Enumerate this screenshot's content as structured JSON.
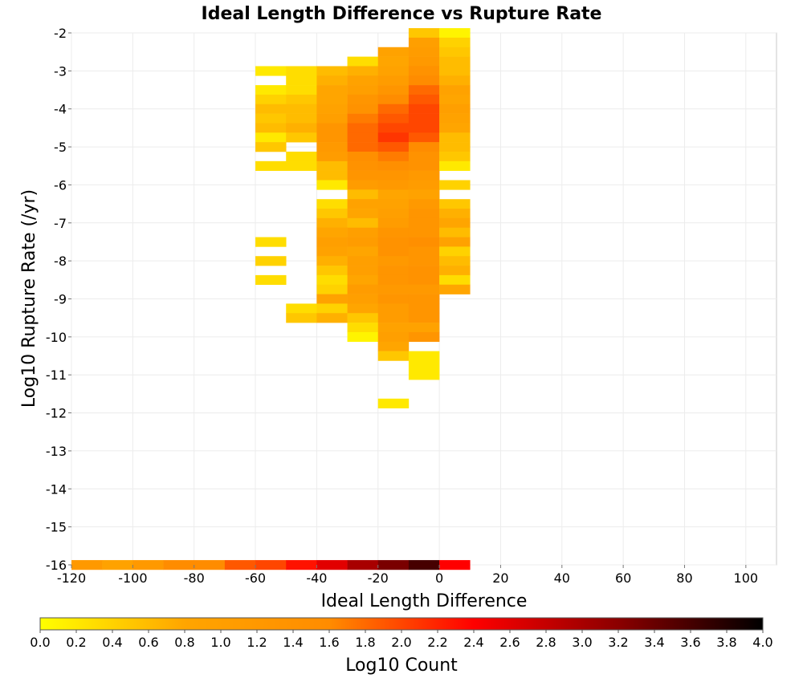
{
  "chart_data": {
    "type": "heatmap",
    "title": "Ideal Length Difference vs Rupture Rate",
    "xlabel": "Ideal Length Difference",
    "ylabel": "Log10 Rupture Rate (/yr)",
    "xlim": [
      -120,
      110
    ],
    "ylim": [
      -16,
      -2
    ],
    "x_ticks": [
      "-120",
      "-100",
      "-80",
      "-60",
      "-40",
      "-20",
      "0",
      "20",
      "40",
      "60",
      "80",
      "100"
    ],
    "y_ticks": [
      "-2",
      "-3",
      "-4",
      "-5",
      "-6",
      "-7",
      "-8",
      "-9",
      "-10",
      "-11",
      "-12",
      "-13",
      "-14",
      "-15",
      "-16"
    ],
    "x_bin_width": 10,
    "y_bin_height": 0.25,
    "colorbar": {
      "label": "Log10 Count",
      "min": 0.0,
      "max": 4.0,
      "ticks": [
        "0.0",
        "0.2",
        "0.4",
        "0.6",
        "0.8",
        "1.0",
        "1.2",
        "1.4",
        "1.6",
        "1.8",
        "2.0",
        "2.2",
        "2.4",
        "2.6",
        "2.8",
        "3.0",
        "3.2",
        "3.4",
        "3.6",
        "3.8",
        "4.0"
      ],
      "colors": [
        "#ffff00",
        "#ffa500",
        "#ff8c00",
        "#ff0000",
        "#8b0000",
        "#000000"
      ]
    },
    "cells": [
      [
        -10,
        -2,
        0.5
      ],
      [
        0,
        -2,
        0.1
      ],
      [
        -10,
        -2.25,
        1.0
      ],
      [
        0,
        -2.25,
        0.4
      ],
      [
        -20,
        -2.5,
        0.9
      ],
      [
        -10,
        -2.5,
        1.1
      ],
      [
        0,
        -2.5,
        0.5
      ],
      [
        -30,
        -2.75,
        0.3
      ],
      [
        -20,
        -2.75,
        0.8
      ],
      [
        -10,
        -2.75,
        1.2
      ],
      [
        0,
        -2.75,
        0.6
      ],
      [
        -60,
        -3,
        0.2
      ],
      [
        -50,
        -3,
        0.3
      ],
      [
        -40,
        -3,
        0.6
      ],
      [
        -30,
        -3,
        0.7
      ],
      [
        -20,
        -3,
        0.9
      ],
      [
        -10,
        -3,
        1.4
      ],
      [
        0,
        -3,
        0.6
      ],
      [
        -50,
        -3.25,
        0.3
      ],
      [
        -40,
        -3.25,
        0.7
      ],
      [
        -30,
        -3.25,
        0.9
      ],
      [
        -20,
        -3.25,
        1.1
      ],
      [
        -10,
        -3.25,
        1.6
      ],
      [
        0,
        -3.25,
        0.7
      ],
      [
        -60,
        -3.5,
        0.2
      ],
      [
        -50,
        -3.5,
        0.3
      ],
      [
        -40,
        -3.5,
        0.8
      ],
      [
        -30,
        -3.5,
        1.0
      ],
      [
        -20,
        -3.5,
        1.3
      ],
      [
        -10,
        -3.5,
        1.8
      ],
      [
        0,
        -3.5,
        0.9
      ],
      [
        -60,
        -3.75,
        0.4
      ],
      [
        -50,
        -3.75,
        0.5
      ],
      [
        -40,
        -3.75,
        0.8
      ],
      [
        -30,
        -3.75,
        1.3
      ],
      [
        -20,
        -3.75,
        1.6
      ],
      [
        -10,
        -3.75,
        1.9
      ],
      [
        0,
        -3.75,
        0.8
      ],
      [
        -60,
        -4,
        0.6
      ],
      [
        -50,
        -4,
        0.6
      ],
      [
        -40,
        -4,
        0.9
      ],
      [
        -30,
        -4,
        1.4
      ],
      [
        -20,
        -4,
        1.8
      ],
      [
        -10,
        -4,
        2.0
      ],
      [
        0,
        -4,
        1.0
      ],
      [
        -60,
        -4.25,
        0.5
      ],
      [
        -50,
        -4.25,
        0.6
      ],
      [
        -40,
        -4.25,
        1.0
      ],
      [
        -30,
        -4.25,
        1.7
      ],
      [
        -20,
        -4.25,
        1.9
      ],
      [
        -10,
        -4.25,
        2.0
      ],
      [
        0,
        -4.25,
        0.9
      ],
      [
        -60,
        -4.5,
        0.6
      ],
      [
        -50,
        -4.5,
        0.7
      ],
      [
        -40,
        -4.5,
        1.3
      ],
      [
        -30,
        -4.5,
        1.8
      ],
      [
        -20,
        -4.5,
        2.0
      ],
      [
        -10,
        -4.5,
        2.0
      ],
      [
        0,
        -4.5,
        0.8
      ],
      [
        -60,
        -4.75,
        0.2
      ],
      [
        -50,
        -4.75,
        0.5
      ],
      [
        -40,
        -4.75,
        1.3
      ],
      [
        -30,
        -4.75,
        1.8
      ],
      [
        -20,
        -4.75,
        2.1
      ],
      [
        -10,
        -4.75,
        1.9
      ],
      [
        0,
        -4.75,
        0.6
      ],
      [
        -60,
        -5,
        0.5
      ],
      [
        -40,
        -5,
        1.2
      ],
      [
        -30,
        -5,
        1.8
      ],
      [
        -20,
        -5,
        1.9
      ],
      [
        -10,
        -5,
        1.6
      ],
      [
        0,
        -5,
        0.6
      ],
      [
        -50,
        -5.25,
        0.3
      ],
      [
        -40,
        -5.25,
        1.1
      ],
      [
        -30,
        -5.25,
        1.5
      ],
      [
        -20,
        -5.25,
        1.7
      ],
      [
        -10,
        -5.25,
        1.4
      ],
      [
        0,
        -5.25,
        0.5
      ],
      [
        -60,
        -5.5,
        0.3
      ],
      [
        -50,
        -5.5,
        0.3
      ],
      [
        -40,
        -5.5,
        0.6
      ],
      [
        -30,
        -5.5,
        1.4
      ],
      [
        -20,
        -5.5,
        1.5
      ],
      [
        -10,
        -5.5,
        1.4
      ],
      [
        0,
        -5.5,
        0.2
      ],
      [
        -40,
        -5.75,
        0.6
      ],
      [
        -30,
        -5.75,
        1.3
      ],
      [
        -20,
        -5.75,
        1.3
      ],
      [
        -10,
        -5.75,
        1.2
      ],
      [
        -40,
        -6,
        0.2
      ],
      [
        -30,
        -6,
        1.1
      ],
      [
        -20,
        -6,
        1.2
      ],
      [
        -10,
        -6,
        1.1
      ],
      [
        0,
        -6,
        0.4
      ],
      [
        -30,
        -6.25,
        0.6
      ],
      [
        -20,
        -6.25,
        0.8
      ],
      [
        -10,
        -6.25,
        0.9
      ],
      [
        -40,
        -6.5,
        0.3
      ],
      [
        -30,
        -6.5,
        0.9
      ],
      [
        -20,
        -6.5,
        0.9
      ],
      [
        -10,
        -6.5,
        1.2
      ],
      [
        0,
        -6.5,
        0.5
      ],
      [
        -40,
        -6.75,
        0.5
      ],
      [
        -30,
        -6.75,
        0.8
      ],
      [
        -20,
        -6.75,
        1.0
      ],
      [
        -10,
        -6.75,
        1.3
      ],
      [
        0,
        -6.75,
        0.7
      ],
      [
        -40,
        -7,
        0.7
      ],
      [
        -30,
        -7,
        0.6
      ],
      [
        -20,
        -7,
        1.1
      ],
      [
        -10,
        -7,
        1.3
      ],
      [
        0,
        -7,
        0.8
      ],
      [
        -40,
        -7.25,
        0.8
      ],
      [
        -30,
        -7.25,
        1.0
      ],
      [
        -20,
        -7.25,
        1.3
      ],
      [
        -10,
        -7.25,
        1.3
      ],
      [
        0,
        -7.25,
        0.6
      ],
      [
        -60,
        -7.5,
        0.3
      ],
      [
        -40,
        -7.5,
        1.0
      ],
      [
        -30,
        -7.5,
        1.1
      ],
      [
        -20,
        -7.5,
        1.4
      ],
      [
        -10,
        -7.5,
        1.5
      ],
      [
        0,
        -7.5,
        0.9
      ],
      [
        -40,
        -7.75,
        0.9
      ],
      [
        -30,
        -7.75,
        0.8
      ],
      [
        -20,
        -7.75,
        1.4
      ],
      [
        -10,
        -7.75,
        1.3
      ],
      [
        0,
        -7.75,
        0.4
      ],
      [
        -60,
        -8,
        0.4
      ],
      [
        -40,
        -8,
        0.7
      ],
      [
        -30,
        -8,
        1.0
      ],
      [
        -20,
        -8,
        1.2
      ],
      [
        -10,
        -8,
        1.3
      ],
      [
        0,
        -8,
        0.6
      ],
      [
        -40,
        -8.25,
        0.5
      ],
      [
        -30,
        -8.25,
        1.0
      ],
      [
        -20,
        -8.25,
        1.3
      ],
      [
        -10,
        -8.25,
        1.4
      ],
      [
        0,
        -8.25,
        0.7
      ],
      [
        -60,
        -8.5,
        0.3
      ],
      [
        -40,
        -8.5,
        0.3
      ],
      [
        -30,
        -8.5,
        0.8
      ],
      [
        -20,
        -8.5,
        1.3
      ],
      [
        -10,
        -8.5,
        1.4
      ],
      [
        0,
        -8.5,
        0.3
      ],
      [
        -40,
        -8.75,
        0.4
      ],
      [
        -30,
        -8.75,
        1.1
      ],
      [
        -20,
        -8.75,
        1.2
      ],
      [
        -10,
        -8.75,
        1.2
      ],
      [
        0,
        -8.75,
        0.8
      ],
      [
        -40,
        -9,
        0.9
      ],
      [
        -30,
        -9,
        1.0
      ],
      [
        -20,
        -9,
        1.3
      ],
      [
        -10,
        -9,
        1.3
      ],
      [
        -50,
        -9.25,
        0.3
      ],
      [
        -40,
        -9.25,
        0.4
      ],
      [
        -30,
        -9.25,
        0.8
      ],
      [
        -20,
        -9.25,
        1.1
      ],
      [
        -10,
        -9.25,
        1.3
      ],
      [
        -50,
        -9.5,
        0.5
      ],
      [
        -40,
        -9.5,
        0.7
      ],
      [
        -30,
        -9.5,
        0.5
      ],
      [
        -20,
        -9.5,
        1.1
      ],
      [
        -10,
        -9.5,
        1.3
      ],
      [
        -30,
        -9.75,
        0.3
      ],
      [
        -20,
        -9.75,
        0.9
      ],
      [
        -10,
        -9.75,
        0.9
      ],
      [
        -30,
        -10,
        0.1
      ],
      [
        -20,
        -10,
        1.0
      ],
      [
        -10,
        -10,
        1.3
      ],
      [
        -20,
        -10.25,
        0.8
      ],
      [
        -20,
        -10.5,
        0.5
      ],
      [
        -10,
        -10.5,
        0.2
      ],
      [
        -10,
        -10.75,
        0.2
      ],
      [
        -10,
        -11,
        0.2
      ],
      [
        -20,
        -11.75,
        0.2
      ],
      [
        -120,
        -16,
        1.2
      ],
      [
        -110,
        -16,
        0.9
      ],
      [
        -100,
        -16,
        1.2
      ],
      [
        -90,
        -16,
        1.6
      ],
      [
        -80,
        -16,
        1.6
      ],
      [
        -70,
        -16,
        1.9
      ],
      [
        -60,
        -16,
        2.0
      ],
      [
        -50,
        -16,
        2.3
      ],
      [
        -40,
        -16,
        2.6
      ],
      [
        -30,
        -16,
        3.0
      ],
      [
        -20,
        -16,
        3.3
      ],
      [
        -10,
        -16,
        3.6
      ],
      [
        0,
        -16,
        2.4
      ]
    ]
  }
}
